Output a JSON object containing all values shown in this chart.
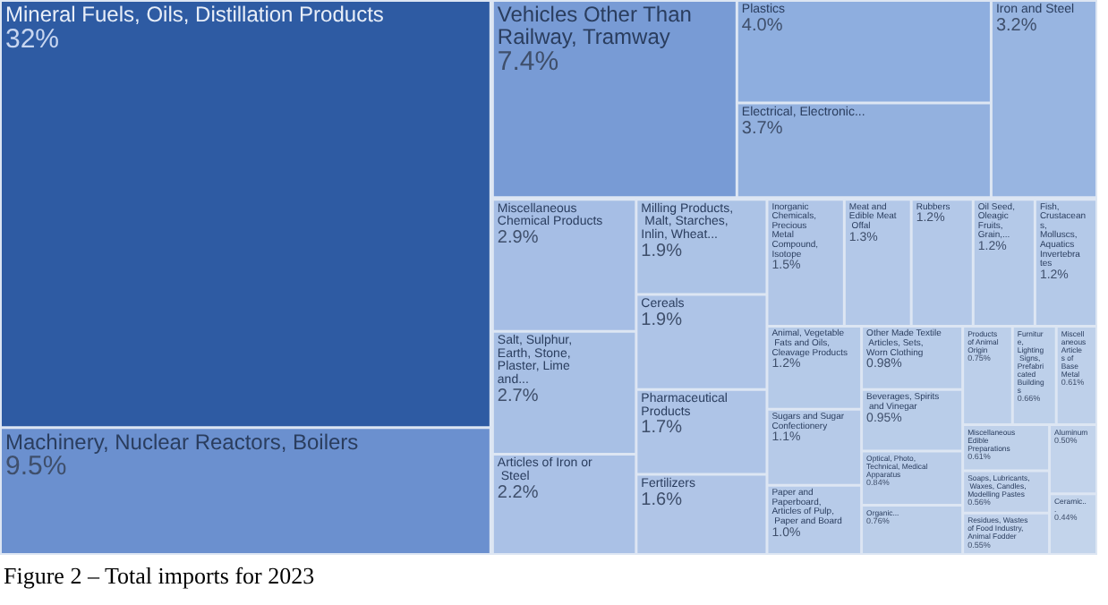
{
  "chart_data": {
    "type": "other",
    "annotations": [
      "Figure 2 – Total imports for 2023"
    ],
    "categories": [
      "Mineral Fuels, Oils, Distillation Products",
      "Machinery, Nuclear Reactors, Boilers",
      "Vehicles Other Than Railway, Tramway",
      "Plastics",
      "Electrical, Electronic...",
      "Iron and Steel",
      "Miscellaneous Chemical Products",
      "Salt, Sulphur, Earth, Stone, Plaster, Lime and...",
      "Articles of Iron or Steel",
      "Milling Products, Malt, Starches, Inlin, Wheat...",
      "Cereals",
      "Pharmaceutical Products",
      "Fertilizers",
      "Inorganic Chemicals, Precious Metal Compound, Isotope",
      "Meat and Edible Meat Offal",
      "Rubbers",
      "Oil Seed, Oleagic Fruits, Grain,...",
      "Fish, Crustaceans, Molluscs, Aquatics Invertebrates",
      "Animal, Vegetable Fats and Oils, Cleavage Products",
      "Sugars and Sugar Confectionery",
      "Paper and Paperboard, Articles of Pulp, Paper and Board",
      "Other Made Textile Articles, Sets, Worn Clothing",
      "Beverages, Spirits and Vinegar",
      "Optical, Photo, Technical, Medical Apparatus",
      "Organic...",
      "Products of Animal Origin",
      "Furniture, Lighting Signs, Prefabricated Buildings",
      "Miscellaneous Articles of Base Metal",
      "Miscellaneous Edible Preparations",
      "Soaps, Lubricants, Waxes, Candles, Modelling Pastes",
      "Residues, Wastes of Food Industry, Animal Fodder",
      "Aluminum",
      "Ceramic..."
    ],
    "values": [
      32,
      9.5,
      7.4,
      4.0,
      3.7,
      3.2,
      2.9,
      2.7,
      2.2,
      1.9,
      1.9,
      1.7,
      1.6,
      1.5,
      1.3,
      1.2,
      1.2,
      1.2,
      1.2,
      1.1,
      1.0,
      0.98,
      0.95,
      0.84,
      0.76,
      0.75,
      0.66,
      0.61,
      0.61,
      0.56,
      0.55,
      0.5,
      0.44
    ],
    "value_labels": [
      "32%",
      "9.5%",
      "7.4%",
      "4.0%",
      "3.7%",
      "3.2%",
      "2.9%",
      "2.7%",
      "2.2%",
      "1.9%",
      "1.9%",
      "1.7%",
      "1.6%",
      "1.5%",
      "1.3%",
      "1.2%",
      "1.2%",
      "1.2%",
      "1.2%",
      "1.1%",
      "1.0%",
      "0.98%",
      "0.95%",
      "0.84%",
      "0.76%",
      "0.75%",
      "0.66%",
      "0.61%",
      "0.61%",
      "0.56%",
      "0.55%",
      "0.50%",
      "0.44%"
    ],
    "colors": [
      "#2e5ba3",
      "#6b90cf",
      "#789bd5",
      "#8eaedf",
      "#93b1df",
      "#98b5e1",
      "#a6bee5",
      "#a8c0e5",
      "#aac1e6",
      "#acc3e6",
      "#aec4e7",
      "#aec4e7",
      "#b0c5e7",
      "#b1c6e7",
      "#b3c8e8",
      "#b3c8e8",
      "#b4c9e8",
      "#b4c9e8",
      "#b5cae8",
      "#b6cae8",
      "#b7cbe9",
      "#b8cce9",
      "#b9cde9",
      "#bacde9",
      "#bbcee9",
      "#bccfea",
      "#bdd0ea",
      "#bed0ea",
      "#bfd1ea",
      "#c0d1ea",
      "#c1d2eb",
      "#c2d3eb",
      "#c3d4eb"
    ]
  }
}
